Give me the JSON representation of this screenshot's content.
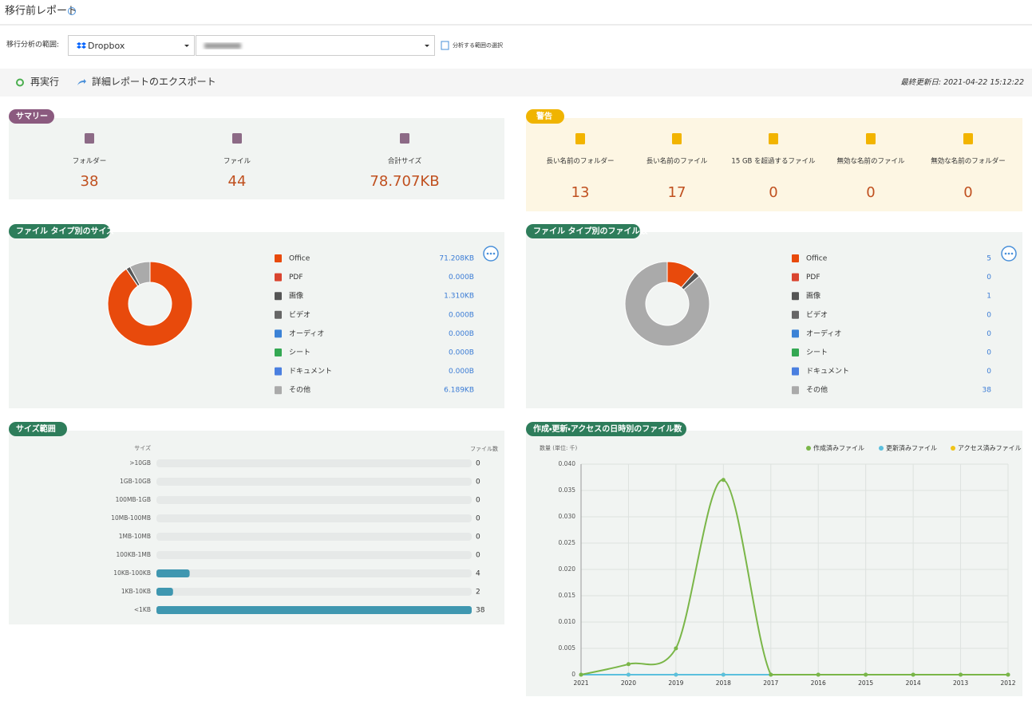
{
  "header": {
    "title": "移行前レポート"
  },
  "scope": {
    "label": "移行分析の範囲:",
    "source": "Dropbox",
    "link": "分析する範囲の選択"
  },
  "toolbar": {
    "rerun": "再実行",
    "export": "詳細レポートのエクスポート",
    "updated_label": "最終更新日:",
    "updated": "2021-04-22 15:12:22"
  },
  "summary": {
    "title": "サマリー",
    "items": [
      {
        "label": "フォルダー",
        "value": 38
      },
      {
        "label": "ファイル",
        "value": 44
      },
      {
        "label": "合計サイズ",
        "value": "78.707KB"
      }
    ]
  },
  "warnings": {
    "title": "警告",
    "items": [
      {
        "label": "長い名前のフォルダー",
        "value": 13
      },
      {
        "label": "長い名前のファイル",
        "value": 17
      },
      {
        "label": "15 GB を超過するファイル",
        "value": 0
      },
      {
        "label": "無効な名前のファイル",
        "value": 0
      },
      {
        "label": "無効な名前のフォルダー",
        "value": 0
      }
    ]
  },
  "chart_data": [
    {
      "type": "donut",
      "title": "ファイル タイプ別のサイズ",
      "categories": [
        "Office",
        "PDF",
        "画像",
        "ビデオ",
        "オーディオ",
        "シート",
        "ドキュメント",
        "その他"
      ],
      "values": [
        71.208,
        0,
        1.31,
        0,
        0,
        0,
        0,
        6.189
      ],
      "value_labels": [
        "71.208KB",
        "0.000B",
        "1.310KB",
        "0.000B",
        "0.000B",
        "0.000B",
        "0.000B",
        "6.189KB"
      ],
      "colors": [
        "#e84a0c",
        "#d9442f",
        "#555555",
        "#666666",
        "#3b82d6",
        "#34a853",
        "#4a7fe0",
        "#aaaaaa"
      ]
    },
    {
      "type": "donut",
      "title": "ファイル タイプ別のファイル数",
      "categories": [
        "Office",
        "PDF",
        "画像",
        "ビデオ",
        "オーディオ",
        "シート",
        "ドキュメント",
        "その他"
      ],
      "values": [
        5,
        0,
        1,
        0,
        0,
        0,
        0,
        38
      ],
      "colors": [
        "#e84a0c",
        "#d9442f",
        "#555555",
        "#666666",
        "#3b82d6",
        "#34a853",
        "#4a7fe0",
        "#aaaaaa"
      ]
    },
    {
      "type": "hbar",
      "title": "サイズ範囲",
      "category_header": "サイズ",
      "value_header": "ファイル数",
      "categories": [
        ">10GB",
        "1GB-10GB",
        "100MB-1GB",
        "10MB-100MB",
        "1MB-10MB",
        "100KB-1MB",
        "10KB-100KB",
        "1KB-10KB",
        "<1KB"
      ],
      "values": [
        0,
        0,
        0,
        0,
        0,
        0,
        4,
        2,
        38
      ],
      "xlim": [
        0,
        38
      ],
      "color": "#3f97b0"
    },
    {
      "type": "line",
      "title": "作成・更新・アクセスの日時別のファイル数",
      "ylabel": "数量 (単位: 千)",
      "categories": [
        "2021",
        "2020",
        "2019",
        "2018",
        "2017",
        "2016",
        "2015",
        "2014",
        "2013",
        "2012"
      ],
      "series": [
        {
          "name": "作成済みファイル",
          "color": "#7ab648",
          "values": [
            0,
            0.002,
            0.005,
            0.037,
            0,
            0,
            0,
            0,
            0,
            0
          ]
        },
        {
          "name": "更新済みファイル",
          "color": "#5bc0de",
          "values": [
            0,
            0,
            0,
            0,
            0,
            0,
            0,
            0,
            0,
            0
          ]
        },
        {
          "name": "アクセス済みファイル",
          "color": "#f0c419",
          "values": [
            0,
            0,
            0,
            0,
            0,
            0,
            0,
            0,
            0,
            0
          ]
        }
      ],
      "ylim": [
        0,
        0.04
      ],
      "yticks": [
        0,
        0.005,
        {
          "value": 0.01,
          "label": "0.010"
        },
        0.015,
        {
          "value": 0.02,
          "label": "0.020"
        },
        0.025,
        {
          "value": 0.03,
          "label": "0.030"
        },
        0.035,
        {
          "value": 0.04,
          "label": "0.040"
        }
      ],
      "grid": true
    }
  ]
}
